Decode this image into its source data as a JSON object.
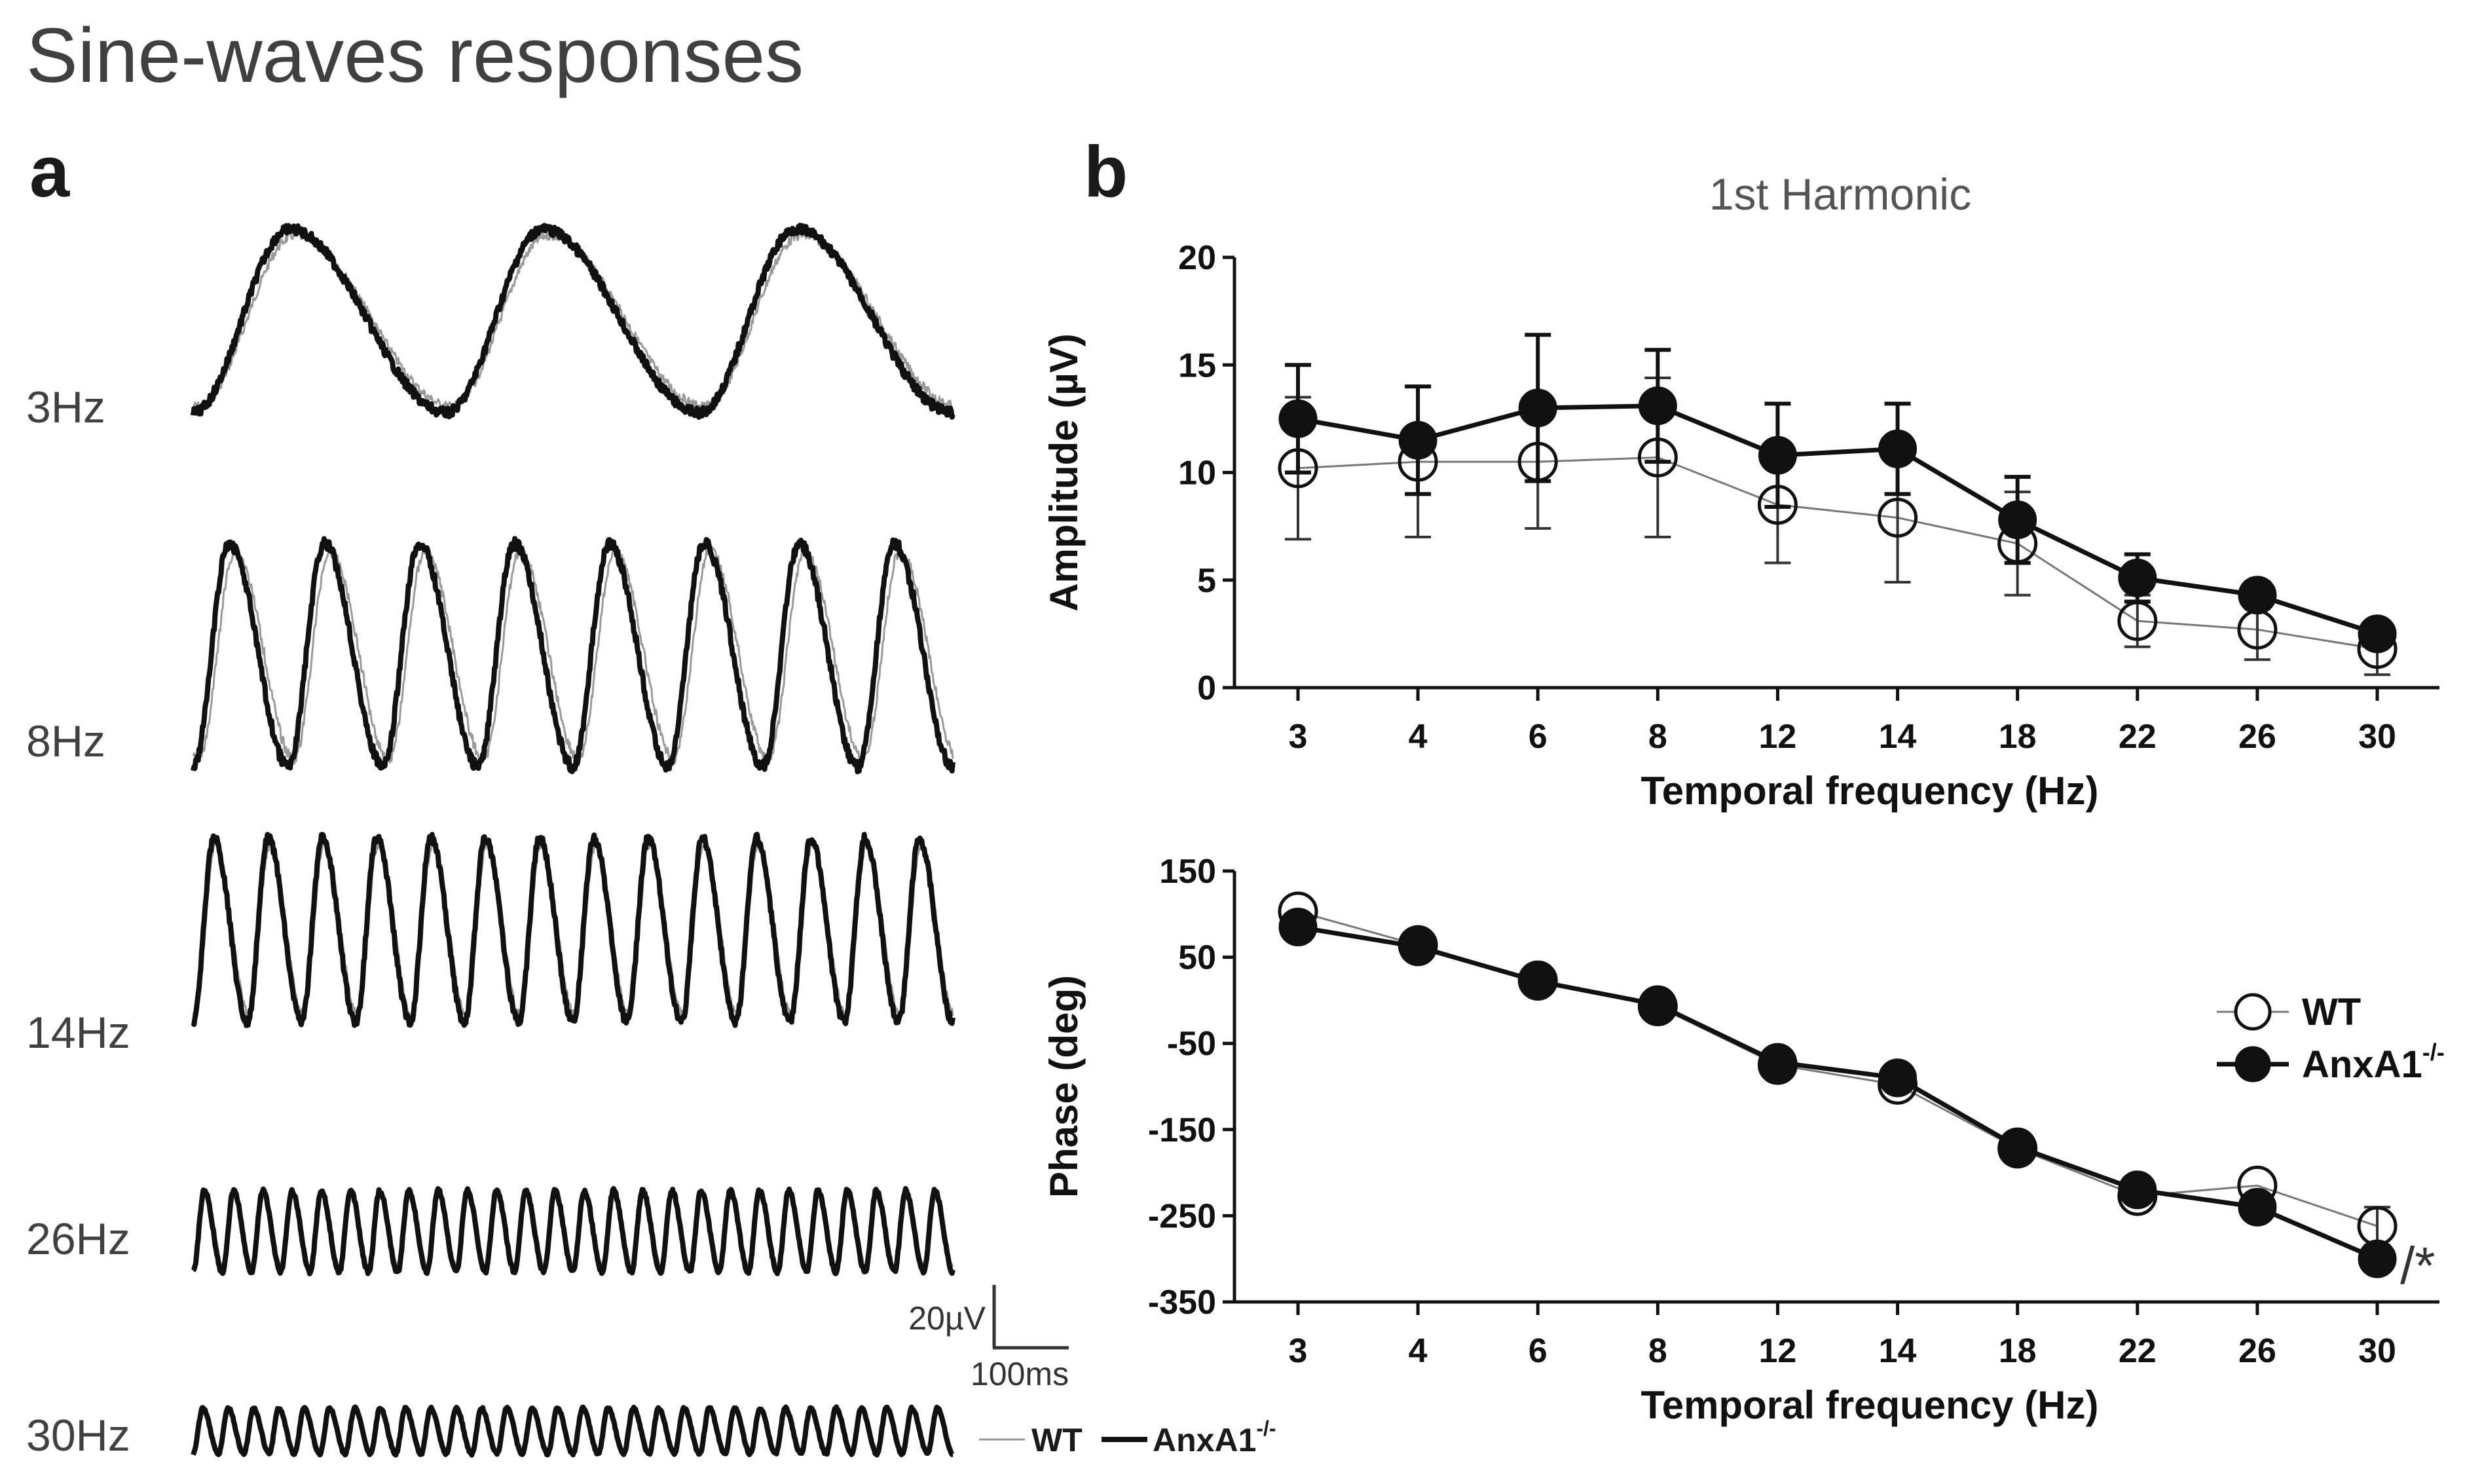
{
  "title": "Sine-waves responses",
  "panel_a": {
    "label": "a",
    "trace_labels": [
      "3Hz",
      "8Hz",
      "14Hz",
      "26Hz",
      "30Hz"
    ],
    "frequencies": [
      3,
      8,
      14,
      26,
      30
    ],
    "scale_bar": {
      "voltage": "20µV",
      "time": "100ms"
    },
    "legend": {
      "wt": "WT",
      "ko": "AnxA1",
      "ko_sup": "-/-"
    }
  },
  "panel_b": {
    "label": "b",
    "subtitle": "1st Harmonic"
  },
  "chart_data": [
    {
      "type": "line",
      "title": "1st Harmonic",
      "xlabel": "Temporal frequency (Hz)",
      "ylabel": "Amplitude (µV)",
      "categories": [
        "3",
        "4",
        "6",
        "8",
        "12",
        "14",
        "18",
        "22",
        "26",
        "30"
      ],
      "ylim": [
        0,
        20
      ],
      "yticks": [
        "0",
        "5",
        "10",
        "15",
        "20"
      ],
      "ytick_values": [
        0,
        5,
        10,
        15,
        20
      ],
      "series": [
        {
          "name": "WT",
          "marker": "open-circle",
          "values": [
            10.2,
            10.5,
            10.5,
            10.7,
            8.5,
            7.9,
            6.7,
            3.1,
            2.7,
            1.8
          ],
          "errors": [
            3.3,
            3.5,
            3.1,
            3.7,
            2.7,
            3.0,
            2.4,
            1.2,
            1.4,
            1.2
          ]
        },
        {
          "name": "AnxA1-/-",
          "marker": "filled-circle",
          "values": [
            12.5,
            11.5,
            13.0,
            13.1,
            10.8,
            11.1,
            7.8,
            5.1,
            4.3,
            2.5
          ],
          "errors": [
            2.5,
            2.5,
            3.4,
            2.6,
            2.4,
            2.1,
            2.0,
            1.1,
            0.6,
            0.4
          ]
        }
      ]
    },
    {
      "type": "line",
      "xlabel": "Temporal frequency (Hz)",
      "ylabel": "Phase (deg)",
      "categories": [
        "3",
        "4",
        "6",
        "8",
        "12",
        "14",
        "18",
        "22",
        "26",
        "30"
      ],
      "ylim": [
        -350,
        150
      ],
      "yticks": [
        "150",
        "50",
        "-50",
        "-150",
        "-250",
        "-350"
      ],
      "ytick_values": [
        150,
        50,
        -50,
        -150,
        -250,
        -350
      ],
      "legend": {
        "position": "right",
        "wt": "WT",
        "ko": "AnxA1",
        "ko_sup": "-/-"
      },
      "annotation": "/*",
      "series": [
        {
          "name": "WT",
          "marker": "open-circle",
          "values": [
            103,
            64,
            23,
            -7,
            -75,
            -98,
            -172,
            -227,
            -215,
            -262
          ],
          "errors": [
            0,
            0,
            0,
            0,
            0,
            0,
            0,
            0,
            0,
            22
          ]
        },
        {
          "name": "AnxA1-/-",
          "marker": "filled-circle",
          "values": [
            85,
            62,
            22,
            -5,
            -72,
            -90,
            -170,
            -220,
            -240,
            -300
          ],
          "errors": [
            0,
            0,
            0,
            0,
            0,
            0,
            0,
            0,
            0,
            0
          ]
        }
      ]
    }
  ]
}
